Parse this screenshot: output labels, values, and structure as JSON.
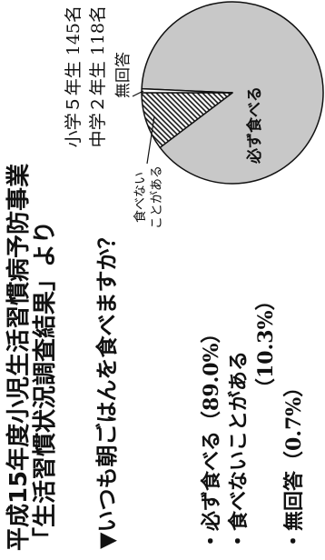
{
  "header": {
    "title_line1": "平成15年度小児生活習慣病予防事業",
    "title_line2": "「生活習慣状況調査結果」より",
    "respondents": [
      "小学５年生 145名",
      "中学２年生 118名"
    ]
  },
  "question": {
    "marker": "▼"
  },
  "chart_data": {
    "type": "pie",
    "title": "いつも朝ごはんを食べますか？",
    "categories": [
      "必ず食べる",
      "食べないことがある",
      "無回答"
    ],
    "values": [
      89.0,
      10.3,
      0.7
    ],
    "value_labels": [
      "（89.0%）",
      "（10.3%）",
      "（0.7%）"
    ],
    "slice_labels": [
      [
        "必ず食べる"
      ],
      [
        "食べない",
        "ことがある"
      ],
      [
        "無回答"
      ]
    ],
    "slice_fills": [
      "#c8c8c8",
      "#ffffff",
      "#ffffff"
    ],
    "slice_hatch": [
      false,
      true,
      false
    ],
    "outline_color": "#111111",
    "legend": {
      "bullet": "・",
      "placement": "bottom-left"
    }
  }
}
